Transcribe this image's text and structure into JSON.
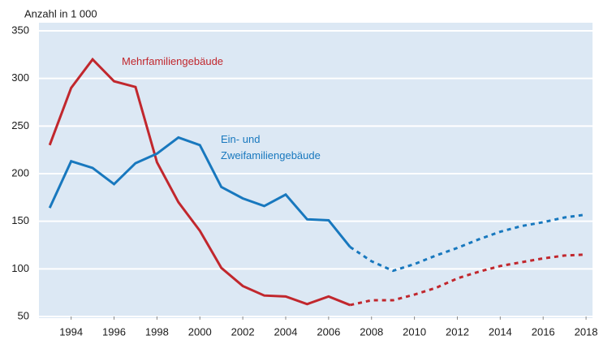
{
  "chart_data": {
    "type": "line",
    "y_label": "Anzahl in 1 000",
    "x": [
      1993,
      1994,
      1995,
      1996,
      1997,
      1998,
      1999,
      2000,
      2001,
      2002,
      2003,
      2004,
      2005,
      2006,
      2007,
      2008,
      2009,
      2010,
      2011,
      2012,
      2013,
      2014,
      2015,
      2016,
      2017,
      2018
    ],
    "series": [
      {
        "name": [
          "Mehrfamiliengebäude"
        ],
        "color": "#c1272d",
        "values": [
          230,
          290,
          320,
          297,
          291,
          212,
          170,
          140,
          101,
          82,
          72,
          71,
          63,
          71,
          62,
          null,
          null,
          null,
          null,
          null,
          null,
          null,
          null,
          null,
          null,
          null
        ],
        "forecast": [
          null,
          null,
          null,
          null,
          null,
          null,
          null,
          null,
          null,
          null,
          null,
          null,
          null,
          null,
          null,
          67,
          67,
          73,
          80,
          90,
          97,
          103,
          107,
          111,
          114,
          115
        ]
      },
      {
        "name": [
          "Ein- und",
          "Zweifamiliengebäude"
        ],
        "color": "#1878be",
        "values": [
          164,
          213,
          206,
          189,
          211,
          221,
          238,
          230,
          186,
          174,
          166,
          178,
          152,
          151,
          123,
          null,
          null,
          null,
          null,
          null,
          null,
          null,
          null,
          null,
          null,
          null
        ],
        "forecast": [
          null,
          null,
          null,
          null,
          null,
          null,
          null,
          null,
          null,
          null,
          null,
          null,
          null,
          null,
          null,
          108,
          98,
          105,
          114,
          122,
          131,
          139,
          145,
          149,
          154,
          157
        ]
      }
    ],
    "xlim": [
      1992.5,
      2018.3
    ],
    "xticks": [
      1994,
      1996,
      1998,
      2000,
      2002,
      2004,
      2006,
      2008,
      2010,
      2012,
      2014,
      2016,
      2018
    ],
    "ylim": [
      50,
      350
    ],
    "yticks": [
      50,
      100,
      150,
      200,
      250,
      300,
      350
    ],
    "grid": true
  }
}
